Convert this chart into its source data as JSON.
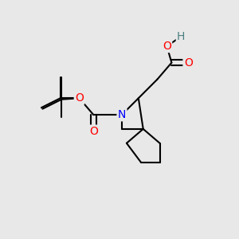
{
  "background_color": "#e8e8e8",
  "bond_color": "#000000",
  "bond_width": 1.5,
  "atom_colors": {
    "O": "#ff0000",
    "N": "#0000ff",
    "H": "#4a8080",
    "C": "#000000"
  },
  "font_size_atom": 9,
  "fig_width": 3.0,
  "fig_height": 3.0
}
